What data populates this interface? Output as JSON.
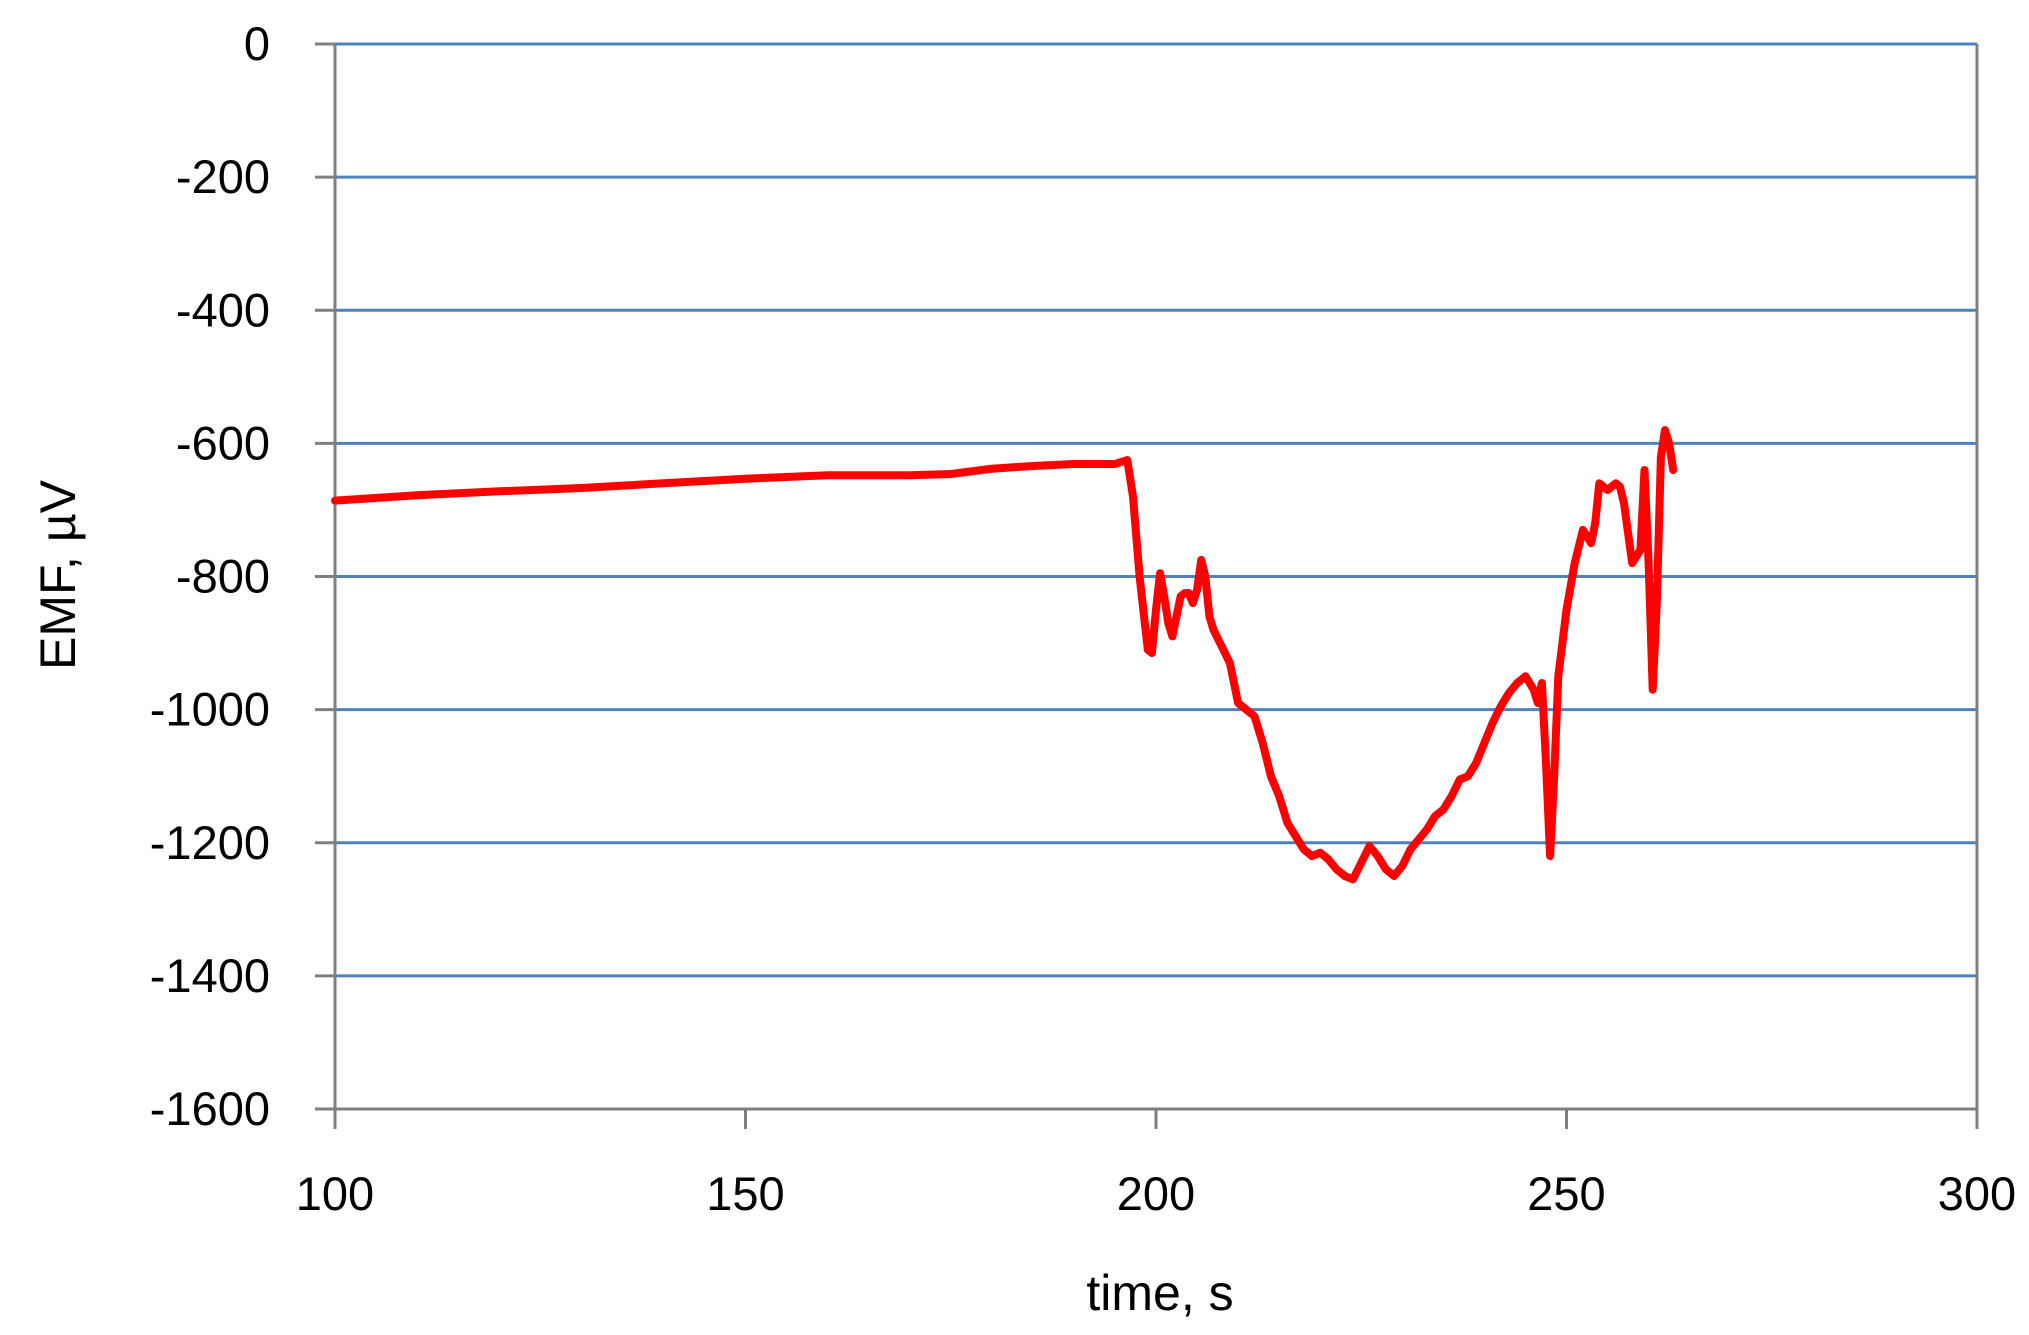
{
  "chart_data": {
    "type": "line",
    "title": "",
    "xlabel": "time, s",
    "ylabel": "EMF, µV",
    "xlim": [
      100,
      300
    ],
    "ylim": [
      -1600,
      0
    ],
    "x_ticks": [
      100,
      150,
      200,
      250,
      300
    ],
    "y_ticks": [
      0,
      -200,
      -400,
      -600,
      -800,
      -1000,
      -1200,
      -1400,
      -1600
    ],
    "grid": "horizontal",
    "legend": "none",
    "colors": {
      "line": "#ff0000",
      "grid": "#4f81bd",
      "axis": "#7f7f7f"
    },
    "series": [
      {
        "x": [
          100,
          110,
          120,
          130,
          140,
          150,
          160,
          170,
          175,
          180,
          185,
          190,
          195,
          196.5,
          197.2,
          198,
          199,
          199.5,
          200,
          200.5,
          201,
          201.5,
          202,
          202.5,
          203,
          203.5,
          204,
          204.5,
          205,
          205.5,
          206,
          206.5,
          207,
          208,
          209,
          210,
          211,
          212,
          213,
          214,
          215,
          216,
          217,
          218,
          219,
          220,
          221,
          222,
          223,
          224,
          225,
          226,
          227,
          228,
          229,
          230,
          231,
          232,
          233,
          234,
          235,
          236,
          237,
          238,
          239,
          240,
          241,
          242,
          243,
          244,
          245,
          246,
          246.5,
          247,
          247.5,
          248,
          248.5,
          249,
          250,
          251,
          252,
          253,
          253.5,
          254,
          254.5,
          255,
          256,
          256.5,
          257,
          258,
          259,
          259.5,
          260,
          260.5,
          261,
          261.5,
          262,
          262.5,
          263
        ],
        "y": [
          -686,
          -678,
          -672,
          -667,
          -660,
          -653,
          -648,
          -648,
          -646,
          -638,
          -634,
          -631,
          -631,
          -625,
          -680,
          -800,
          -910,
          -915,
          -850,
          -795,
          -830,
          -870,
          -890,
          -860,
          -830,
          -825,
          -825,
          -840,
          -820,
          -775,
          -800,
          -860,
          -880,
          -905,
          -930,
          -990,
          -1000,
          -1010,
          -1050,
          -1100,
          -1130,
          -1170,
          -1190,
          -1210,
          -1220,
          -1215,
          -1225,
          -1240,
          -1250,
          -1255,
          -1230,
          -1205,
          -1220,
          -1240,
          -1250,
          -1235,
          -1210,
          -1195,
          -1180,
          -1160,
          -1150,
          -1130,
          -1105,
          -1100,
          -1080,
          -1050,
          -1020,
          -995,
          -975,
          -960,
          -950,
          -970,
          -990,
          -960,
          -1080,
          -1220,
          -1100,
          -950,
          -850,
          -780,
          -730,
          -750,
          -720,
          -660,
          -665,
          -670,
          -660,
          -665,
          -690,
          -780,
          -760,
          -640,
          -780,
          -970,
          -840,
          -620,
          -580,
          -600,
          -640
        ]
      }
    ]
  }
}
